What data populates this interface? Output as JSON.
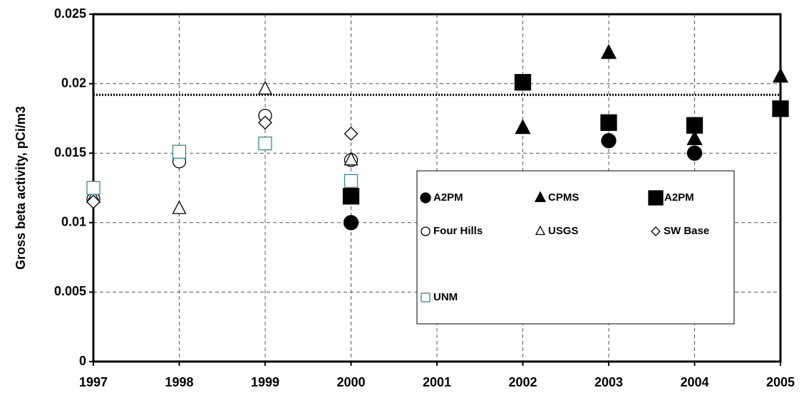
{
  "chart_data": {
    "type": "scatter",
    "y_label": "Gross beta activity, pCi/m3",
    "xlim": [
      1997,
      2005
    ],
    "xticks": [
      1997,
      1998,
      1999,
      2000,
      2001,
      2002,
      2003,
      2004,
      2005
    ],
    "ylim": [
      0,
      0.025
    ],
    "yticks": [
      0,
      0.005,
      0.01,
      0.015,
      0.02,
      0.025
    ],
    "grid": true,
    "reference_line": 0.0192,
    "series": [
      {
        "name": "A2PM",
        "marker": "circle",
        "filled": true,
        "color": "#000000",
        "x": [
          2000,
          2003,
          2004
        ],
        "values": [
          0.01,
          0.0159,
          0.015
        ]
      },
      {
        "name": "CPMS",
        "marker": "triangle",
        "filled": true,
        "color": "#000000",
        "x": [
          2002,
          2003,
          2004,
          2005
        ],
        "values": [
          0.0168,
          0.0222,
          0.016,
          0.0205
        ]
      },
      {
        "name": "A2PM",
        "marker": "square",
        "filled": true,
        "color": "#000000",
        "x": [
          2000,
          2002,
          2003,
          2004,
          2005
        ],
        "values": [
          0.0119,
          0.0201,
          0.0172,
          0.017,
          0.0182
        ]
      },
      {
        "name": "Four Hills",
        "marker": "circle",
        "filled": false,
        "color": "#000000",
        "x": [
          1997,
          1998,
          1999,
          2000
        ],
        "values": [
          0.0117,
          0.0144,
          0.0177,
          0.0145
        ]
      },
      {
        "name": "USGS",
        "marker": "triangle",
        "filled": false,
        "color": "#000000",
        "x": [
          1997,
          1998,
          1999,
          2000
        ],
        "values": [
          0.0118,
          0.011,
          0.0196,
          0.0145
        ]
      },
      {
        "name": "SW Base",
        "marker": "diamond",
        "filled": false,
        "color": "#000000",
        "x": [
          1997,
          1999,
          2000
        ],
        "values": [
          0.0115,
          0.0172,
          0.0164
        ]
      },
      {
        "name": "UNM",
        "marker": "square",
        "filled": false,
        "color": "#2e8b8b",
        "x": [
          1997,
          1998,
          1999,
          2000
        ],
        "values": [
          0.0125,
          0.0151,
          0.0157,
          0.013
        ]
      }
    ]
  }
}
